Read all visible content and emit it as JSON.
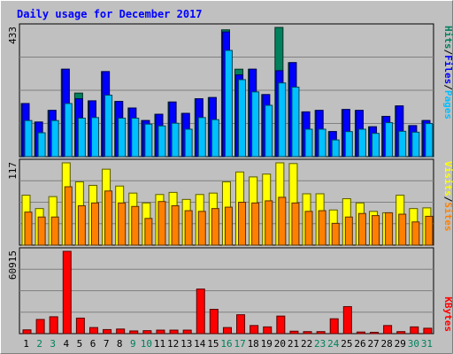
{
  "title": "Daily usage for December 2017",
  "colors": {
    "background": "#c0c0c0",
    "plot_bg": "#c0c0c0",
    "title": "#0000ff",
    "hits": "#00805c",
    "files": "#0000ff",
    "pages": "#00c0ff",
    "visits": "#ffff00",
    "sites": "#ff8000",
    "kbytes": "#ff0000",
    "weekend_day": "#00805c",
    "weekday": "#000000"
  },
  "chart_data": [
    {
      "type": "bar",
      "panel": "hits-files-pages",
      "max_label": "433",
      "ylim": [
        0,
        433
      ],
      "legend": [
        "Pages",
        "Files",
        "Hits"
      ],
      "series": [
        {
          "name": "Hits",
          "values": [
            178,
            116,
            155,
            293,
            213,
            187,
            285,
            185,
            163,
            121,
            142,
            183,
            145,
            194,
            198,
            425,
            293,
            293,
            208,
            433,
            315,
            150,
            155,
            84,
            158,
            155,
            100,
            135,
            170,
            104,
            121
          ]
        },
        {
          "name": "Files",
          "values": [
            178,
            116,
            155,
            293,
            194,
            187,
            285,
            185,
            163,
            121,
            142,
            183,
            145,
            194,
            198,
            418,
            274,
            293,
            208,
            288,
            315,
            150,
            155,
            84,
            158,
            155,
            100,
            135,
            170,
            104,
            121
          ]
        },
        {
          "name": "Pages",
          "values": [
            121,
            80,
            121,
            178,
            129,
            131,
            206,
            129,
            129,
            109,
            103,
            112,
            92,
            131,
            124,
            356,
            258,
            217,
            172,
            247,
            233,
            92,
            92,
            56,
            84,
            92,
            78,
            114,
            85,
            82,
            111
          ]
        }
      ],
      "x": [
        "1",
        "2",
        "3",
        "4",
        "5",
        "6",
        "7",
        "8",
        "9",
        "10",
        "11",
        "12",
        "13",
        "14",
        "15",
        "16",
        "17",
        "18",
        "19",
        "20",
        "21",
        "22",
        "23",
        "24",
        "25",
        "26",
        "27",
        "28",
        "29",
        "30",
        "31"
      ]
    },
    {
      "type": "bar",
      "panel": "visits-sites",
      "max_label": "117",
      "ylim": [
        0,
        117
      ],
      "legend": [
        "Sites",
        "Visits"
      ],
      "series": [
        {
          "name": "Visits",
          "values": [
            71,
            52,
            69,
            117,
            90,
            85,
            108,
            84,
            74,
            60,
            72,
            75,
            65,
            72,
            74,
            90,
            104,
            97,
            101,
            117,
            116,
            73,
            73,
            50,
            66,
            60,
            48,
            46,
            71,
            52,
            53
          ]
        },
        {
          "name": "Sites",
          "values": [
            47,
            40,
            40,
            83,
            56,
            60,
            77,
            60,
            55,
            38,
            62,
            56,
            49,
            48,
            52,
            54,
            61,
            60,
            63,
            68,
            60,
            48,
            49,
            31,
            40,
            45,
            42,
            46,
            44,
            33,
            41
          ]
        }
      ],
      "x": [
        "1",
        "2",
        "3",
        "4",
        "5",
        "6",
        "7",
        "8",
        "9",
        "10",
        "11",
        "12",
        "13",
        "14",
        "15",
        "16",
        "17",
        "18",
        "19",
        "20",
        "21",
        "22",
        "23",
        "24",
        "25",
        "26",
        "27",
        "28",
        "29",
        "30",
        "31"
      ]
    },
    {
      "type": "bar",
      "panel": "kbytes",
      "max_label": "60915",
      "ylim": [
        0,
        60915
      ],
      "legend": [
        "KBytes"
      ],
      "series": [
        {
          "name": "KBytes",
          "values": [
            2800,
            10500,
            12500,
            60915,
            11500,
            4500,
            3000,
            3400,
            2000,
            2200,
            2600,
            2600,
            2600,
            33000,
            18000,
            4500,
            14000,
            6000,
            5000,
            13000,
            1800,
            1500,
            1500,
            11000,
            20000,
            1200,
            1000,
            6000,
            1500,
            5000,
            4000
          ]
        }
      ],
      "x": [
        "1",
        "2",
        "3",
        "4",
        "5",
        "6",
        "7",
        "8",
        "9",
        "10",
        "11",
        "12",
        "13",
        "14",
        "15",
        "16",
        "17",
        "18",
        "19",
        "20",
        "21",
        "22",
        "23",
        "24",
        "25",
        "26",
        "27",
        "28",
        "29",
        "30",
        "31"
      ]
    }
  ],
  "weekend_days": [
    "2",
    "3",
    "9",
    "10",
    "16",
    "17",
    "23",
    "24",
    "30",
    "31"
  ]
}
